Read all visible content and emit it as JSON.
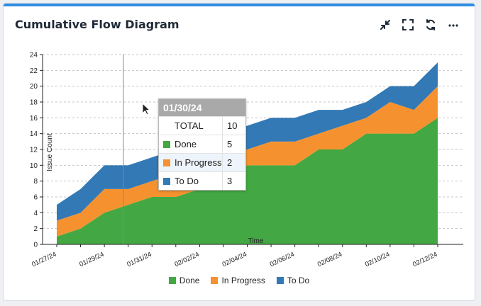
{
  "widget": {
    "title": "Cumulative Flow Diagram",
    "toolbar": [
      {
        "name": "collapse-icon"
      },
      {
        "name": "fullscreen-icon"
      },
      {
        "name": "refresh-icon"
      },
      {
        "name": "more-icon"
      }
    ]
  },
  "colors": {
    "done": "#43a843",
    "in_progress": "#f5922f",
    "todo": "#3279b5"
  },
  "tooltip": {
    "date": "01/30/24",
    "total_label": "TOTAL",
    "total_value": "10",
    "rows": [
      {
        "label": "Done",
        "value": "5",
        "color": "#43a843"
      },
      {
        "label": "In Progress",
        "value": "2",
        "color": "#f5922f"
      },
      {
        "label": "To Do",
        "value": "3",
        "color": "#3279b5"
      }
    ]
  },
  "chart_data": {
    "type": "area",
    "stacked": true,
    "xlabel": "Time",
    "ylabel": "Issue Count",
    "ylim": [
      0,
      24
    ],
    "yticks": [
      0,
      2,
      4,
      6,
      8,
      10,
      12,
      14,
      16,
      18,
      20,
      22,
      24
    ],
    "grid": true,
    "legend_position": "bottom",
    "x": [
      "01/27/24",
      "01/28/24",
      "01/29/24",
      "01/30/24",
      "01/31/24",
      "02/01/24",
      "02/02/24",
      "02/03/24",
      "02/04/24",
      "02/05/24",
      "02/06/24",
      "02/07/24",
      "02/08/24",
      "02/09/24",
      "02/10/24",
      "02/11/24",
      "02/12/24"
    ],
    "xtick_labels": [
      "01/27/24",
      "01/29/24",
      "01/31/24",
      "02/02/24",
      "02/04/24",
      "02/06/24",
      "02/08/24",
      "02/10/24",
      "02/12/24"
    ],
    "series": [
      {
        "name": "Done",
        "color": "#43a843",
        "values": [
          1,
          2,
          4,
          5,
          6,
          6,
          7,
          8,
          10,
          10,
          10,
          12,
          12,
          14,
          14,
          14,
          16
        ]
      },
      {
        "name": "In Progress",
        "color": "#f5922f",
        "values": [
          2,
          2,
          3,
          2,
          2,
          3,
          4,
          3,
          2,
          3,
          3,
          2,
          3,
          2,
          4,
          3,
          4
        ]
      },
      {
        "name": "To Do",
        "color": "#3279b5",
        "values": [
          2,
          3,
          3,
          3,
          3,
          3,
          3,
          3,
          3,
          3,
          3,
          3,
          2,
          2,
          2,
          3,
          3
        ]
      }
    ],
    "hover_index": 3
  }
}
